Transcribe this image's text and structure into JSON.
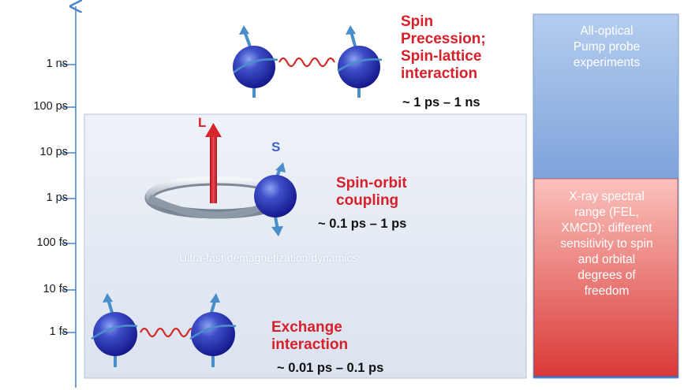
{
  "axis": {
    "ticks": [
      {
        "label": "1 ns"
      },
      {
        "label": "100 ps"
      },
      {
        "label": "10 ps"
      },
      {
        "label": "1 ps"
      },
      {
        "label": "100 fs"
      },
      {
        "label": "10 fs"
      },
      {
        "label": "1 fs"
      }
    ]
  },
  "spin_precession": {
    "title": [
      "Spin",
      "Precession;",
      "Spin-lattice",
      "interaction"
    ],
    "range": "~ 1 ps – 1 ns"
  },
  "spin_orbit": {
    "title": [
      "Spin-orbit",
      "coupling"
    ],
    "range": "~ 0.1 ps – 1 ps",
    "label_L": "L",
    "label_S": "S"
  },
  "exchange": {
    "title": [
      "Exchange",
      "interaction"
    ],
    "range": "~ 0.01 ps – 0.1 ps"
  },
  "region_caption": "Ultra-fast demagnetization dynamics",
  "optical_box": {
    "lines": [
      "All-optical",
      "Pump probe",
      "experiments"
    ]
  },
  "xray_box": {
    "lines": [
      "X-ray spectral",
      "range (FEL,",
      "XMCD): different",
      "sensitivity to spin",
      "and orbital",
      "degrees of",
      "freedom"
    ]
  },
  "colors": {
    "accent_red": "#d6202a",
    "axis_blue": "#4a86c8",
    "optical_box_top": "#a9c3e8",
    "optical_box_bottom": "#3f74c6",
    "xray_box_top": "#f9b4b0",
    "xray_box_bottom": "#de3f3b"
  }
}
